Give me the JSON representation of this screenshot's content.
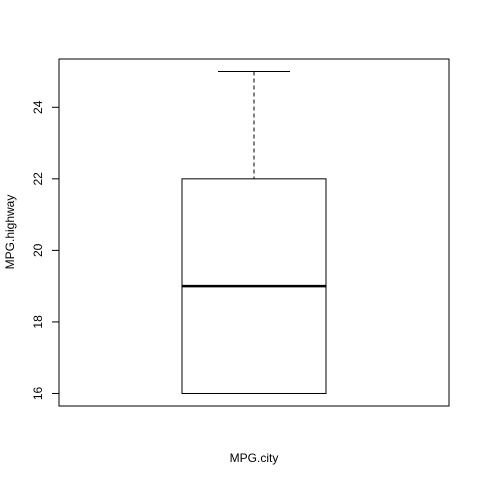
{
  "chart_data": {
    "type": "boxplot",
    "title": "",
    "xlabel": "MPG.city",
    "ylabel": "MPG.highway",
    "ylim": [
      15.65,
      25.35
    ],
    "yticks": [
      16,
      18,
      20,
      22,
      24
    ],
    "ytick_labels": [
      "16",
      "18",
      "20",
      "22",
      "24"
    ],
    "boxes": [
      {
        "whisker_low": 16,
        "q1": 16,
        "median": 19,
        "q3": 22,
        "whisker_high": 25
      }
    ],
    "grid": false,
    "legend": "none"
  }
}
